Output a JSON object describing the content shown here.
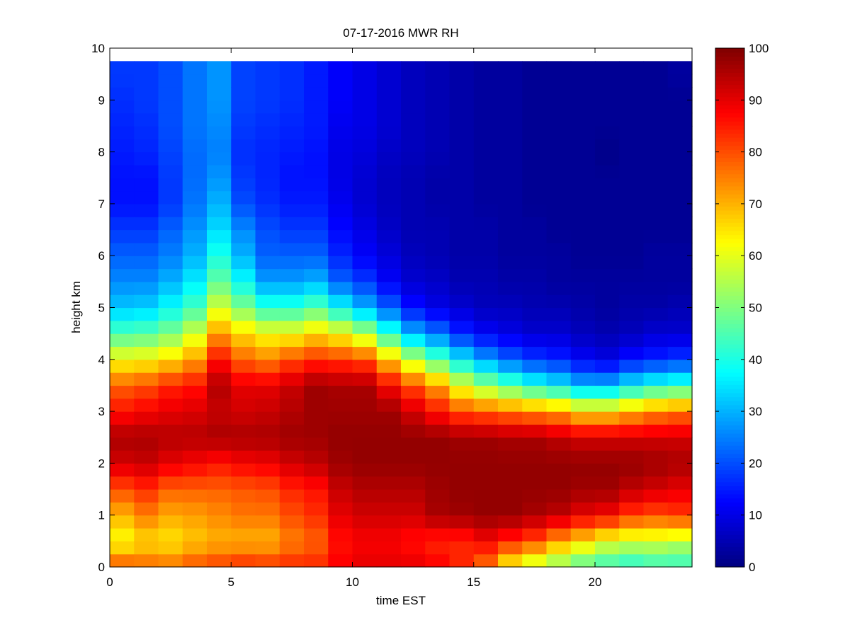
{
  "chart_data": {
    "type": "heatmap",
    "title": "07-17-2016 MWR RH",
    "xlabel": "time EST",
    "ylabel": "height km",
    "xlim": [
      0,
      24
    ],
    "ylim": [
      0,
      10
    ],
    "x_ticks": [
      0,
      5,
      10,
      15,
      20
    ],
    "y_ticks": [
      0,
      1,
      2,
      3,
      4,
      5,
      6,
      7,
      8,
      9,
      10
    ],
    "colorbar": {
      "range": [
        0,
        100
      ],
      "ticks": [
        0,
        10,
        20,
        30,
        40,
        50,
        60,
        70,
        80,
        90,
        100
      ],
      "colormap": "jet",
      "label": ""
    },
    "time_bins": [
      0,
      1,
      2,
      3,
      4,
      5,
      6,
      7,
      8,
      9,
      10,
      11,
      12,
      13,
      14,
      15,
      16,
      17,
      18,
      19,
      20,
      21,
      22,
      23
    ],
    "time_step_hours": 1,
    "data_top_km": 9.75,
    "rh_profiles": {
      "heights_km": [
        0.0,
        0.5,
        1.0,
        1.5,
        2.0,
        2.5,
        3.0,
        3.5,
        4.0,
        4.5,
        5.0,
        5.5,
        6.0,
        6.5,
        7.0,
        7.5,
        8.0,
        8.5,
        9.0,
        9.5,
        9.75
      ],
      "values": [
        [
          80,
          62,
          70,
          80,
          92,
          96,
          86,
          78,
          62,
          45,
          32,
          26,
          22,
          18,
          14,
          14,
          15,
          16,
          17,
          18,
          18
        ],
        [
          78,
          66,
          75,
          83,
          93,
          96,
          88,
          80,
          63,
          46,
          33,
          26,
          22,
          18,
          14,
          14,
          16,
          17,
          18,
          18,
          18
        ],
        [
          77,
          65,
          71,
          78,
          90,
          95,
          90,
          84,
          66,
          50,
          38,
          30,
          25,
          22,
          18,
          18,
          19,
          20,
          20,
          20,
          20
        ],
        [
          80,
          68,
          72,
          78,
          88,
          95,
          91,
          86,
          72,
          58,
          44,
          36,
          30,
          27,
          24,
          23,
          23,
          24,
          24,
          24,
          24
        ],
        [
          82,
          70,
          74,
          78,
          86,
          96,
          93,
          95,
          86,
          72,
          58,
          47,
          40,
          34,
          30,
          27,
          25,
          26,
          27,
          27,
          27
        ],
        [
          84,
          70,
          76,
          79,
          88,
          96,
          92,
          90,
          78,
          66,
          50,
          38,
          30,
          26,
          20,
          18,
          17,
          18,
          19,
          19,
          19
        ],
        [
          83,
          70,
          76,
          80,
          89,
          96,
          93,
          90,
          75,
          62,
          42,
          28,
          22,
          20,
          17,
          16,
          16,
          17,
          18,
          18,
          18
        ],
        [
          84,
          75,
          80,
          84,
          92,
          97,
          95,
          93,
          80,
          62,
          42,
          28,
          22,
          18,
          15,
          14,
          15,
          16,
          17,
          17,
          17
        ],
        [
          84,
          78,
          83,
          86,
          94,
          97,
          97,
          97,
          83,
          66,
          46,
          30,
          22,
          18,
          15,
          14,
          14,
          15,
          15,
          15,
          15
        ],
        [
          88,
          86,
          90,
          93,
          97,
          98,
          97,
          96,
          82,
          62,
          38,
          22,
          16,
          13,
          11,
          10,
          10,
          11,
          12,
          12,
          12
        ],
        [
          90,
          88,
          92,
          95,
          98,
          98,
          97,
          96,
          80,
          55,
          30,
          18,
          12,
          10,
          8,
          8,
          9,
          10,
          10,
          10,
          10
        ],
        [
          90,
          88,
          92,
          95,
          98,
          98,
          97,
          88,
          68,
          42,
          22,
          12,
          9,
          7,
          6,
          6,
          7,
          8,
          8,
          8,
          8
        ],
        [
          90,
          86,
          92,
          95,
          98,
          98,
          92,
          80,
          56,
          30,
          14,
          8,
          6,
          5,
          5,
          5,
          6,
          6,
          6,
          6,
          6
        ],
        [
          88,
          84,
          96,
          97,
          98,
          98,
          86,
          72,
          46,
          24,
          10,
          7,
          5,
          5,
          4,
          4,
          5,
          5,
          5,
          5,
          5
        ],
        [
          84,
          84,
          97,
          98,
          98,
          97,
          80,
          60,
          36,
          16,
          8,
          5,
          4,
          4,
          4,
          4,
          4,
          4,
          4,
          4,
          4
        ],
        [
          76,
          88,
          98,
          98,
          98,
          97,
          78,
          52,
          28,
          12,
          6,
          5,
          4,
          4,
          3,
          3,
          3,
          3,
          3,
          3,
          3
        ],
        [
          62,
          84,
          98,
          98,
          98,
          96,
          76,
          46,
          22,
          10,
          6,
          4,
          3,
          3,
          3,
          3,
          3,
          3,
          3,
          3,
          3
        ],
        [
          55,
          80,
          96,
          98,
          98,
          96,
          74,
          40,
          18,
          8,
          5,
          4,
          3,
          3,
          2,
          2,
          2,
          2,
          2,
          2,
          2
        ],
        [
          50,
          72,
          94,
          98,
          98,
          94,
          72,
          36,
          16,
          8,
          5,
          3,
          3,
          2,
          2,
          2,
          2,
          2,
          2,
          2,
          2
        ],
        [
          45,
          66,
          90,
          97,
          98,
          92,
          66,
          30,
          12,
          6,
          4,
          3,
          2,
          2,
          2,
          2,
          2,
          2,
          2,
          2,
          2
        ],
        [
          42,
          60,
          88,
          97,
          98,
          92,
          66,
          30,
          10,
          5,
          3,
          3,
          2,
          2,
          2,
          2,
          1,
          2,
          2,
          2,
          2
        ],
        [
          40,
          58,
          82,
          94,
          98,
          92,
          70,
          36,
          14,
          6,
          4,
          3,
          2,
          2,
          2,
          2,
          2,
          2,
          2,
          2,
          2
        ],
        [
          42,
          58,
          80,
          92,
          97,
          92,
          74,
          40,
          16,
          8,
          4,
          3,
          3,
          2,
          2,
          2,
          2,
          2,
          2,
          2,
          2
        ],
        [
          42,
          56,
          82,
          90,
          96,
          92,
          76,
          42,
          18,
          8,
          5,
          3,
          3,
          2,
          2,
          2,
          2,
          2,
          2,
          3,
          3
        ]
      ]
    }
  }
}
